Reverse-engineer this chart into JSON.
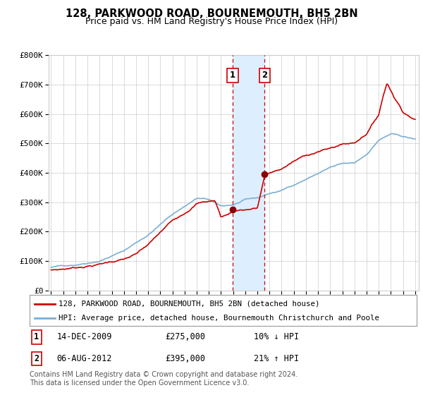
{
  "title": "128, PARKWOOD ROAD, BOURNEMOUTH, BH5 2BN",
  "subtitle": "Price paid vs. HM Land Registry's House Price Index (HPI)",
  "xlim_year": [
    1995,
    2025
  ],
  "ylim": [
    0,
    800000
  ],
  "yticks": [
    0,
    100000,
    200000,
    300000,
    400000,
    500000,
    600000,
    700000,
    800000
  ],
  "ytick_labels": [
    "£0",
    "£100K",
    "£200K",
    "£300K",
    "£400K",
    "£500K",
    "£600K",
    "£700K",
    "£800K"
  ],
  "xtick_years": [
    1995,
    1996,
    1997,
    1998,
    1999,
    2000,
    2001,
    2002,
    2003,
    2004,
    2005,
    2006,
    2007,
    2008,
    2009,
    2010,
    2011,
    2012,
    2013,
    2014,
    2015,
    2016,
    2017,
    2018,
    2019,
    2020,
    2021,
    2022,
    2023,
    2024,
    2025
  ],
  "property_color": "#cc0000",
  "hpi_color": "#7aafd4",
  "transaction1_date": 2009.96,
  "transaction1_value": 275000,
  "transaction2_date": 2012.59,
  "transaction2_value": 395000,
  "vline_color": "#cc0000",
  "shade_color": "#ddeeff",
  "marker_color": "#880000",
  "legend_label1": "128, PARKWOOD ROAD, BOURNEMOUTH, BH5 2BN (detached house)",
  "legend_label2": "HPI: Average price, detached house, Bournemouth Christchurch and Poole",
  "ann1_date": "14-DEC-2009",
  "ann1_price": "£275,000",
  "ann1_hpi": "10% ↓ HPI",
  "ann2_date": "06-AUG-2012",
  "ann2_price": "£395,000",
  "ann2_hpi": "21% ↑ HPI",
  "footer": "Contains HM Land Registry data © Crown copyright and database right 2024.\nThis data is licensed under the Open Government Licence v3.0.",
  "bg_color": "#ffffff",
  "grid_color": "#cccccc"
}
